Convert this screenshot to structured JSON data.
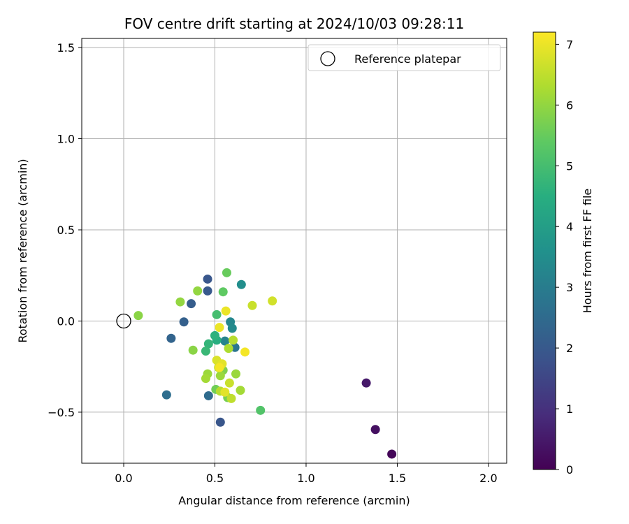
{
  "chart_data": {
    "type": "scatter",
    "title": "FOV centre drift starting at 2024/10/03 09:28:11",
    "xlabel": "Angular distance from reference (arcmin)",
    "ylabel": "Rotation from reference (arcmin)",
    "xlim": [
      -0.23,
      2.1
    ],
    "ylim": [
      -0.78,
      1.55
    ],
    "x_ticks": [
      0.0,
      0.5,
      1.0,
      1.5,
      2.0
    ],
    "x_tick_labels": [
      "0.0",
      "0.5",
      "1.0",
      "1.5",
      "2.0"
    ],
    "y_ticks": [
      -0.5,
      0.0,
      0.5,
      1.0,
      1.5
    ],
    "y_tick_labels": [
      "−0.5",
      "0.0",
      "0.5",
      "1.0",
      "1.5"
    ],
    "grid": true,
    "legend": {
      "placement": "top-right",
      "entries": [
        {
          "label": "Reference platepar",
          "marker": "open-circle"
        }
      ]
    },
    "reference_point": {
      "x": 0.0,
      "y": 0.0
    },
    "colorbar": {
      "label": "Hours from first FF file",
      "colormap": "viridis",
      "range": [
        0,
        7.2
      ],
      "ticks": [
        0,
        1,
        2,
        3,
        4,
        5,
        6,
        7
      ],
      "tick_labels": [
        "0",
        "1",
        "2",
        "3",
        "4",
        "5",
        "6",
        "7"
      ]
    },
    "points": [
      {
        "x": 1.47,
        "y": -0.73,
        "hours": 0.1
      },
      {
        "x": 1.38,
        "y": -0.595,
        "hours": 0.3
      },
      {
        "x": 1.33,
        "y": -0.34,
        "hours": 0.5
      },
      {
        "x": 0.53,
        "y": -0.555,
        "hours": 1.9
      },
      {
        "x": 0.46,
        "y": 0.23,
        "hours": 1.95
      },
      {
        "x": 0.46,
        "y": 0.165,
        "hours": 2.0
      },
      {
        "x": 0.37,
        "y": 0.095,
        "hours": 2.1
      },
      {
        "x": 0.33,
        "y": -0.005,
        "hours": 2.2
      },
      {
        "x": 0.26,
        "y": -0.095,
        "hours": 2.3
      },
      {
        "x": 0.235,
        "y": -0.405,
        "hours": 2.6
      },
      {
        "x": 0.465,
        "y": -0.41,
        "hours": 2.5
      },
      {
        "x": 0.61,
        "y": -0.145,
        "hours": 2.8
      },
      {
        "x": 0.555,
        "y": -0.11,
        "hours": 3.2
      },
      {
        "x": 0.585,
        "y": -0.005,
        "hours": 3.3
      },
      {
        "x": 0.595,
        "y": -0.04,
        "hours": 3.4
      },
      {
        "x": 0.645,
        "y": 0.2,
        "hours": 3.5
      },
      {
        "x": 0.51,
        "y": -0.105,
        "hours": 4.5
      },
      {
        "x": 0.5,
        "y": -0.08,
        "hours": 4.6
      },
      {
        "x": 0.465,
        "y": -0.125,
        "hours": 4.7
      },
      {
        "x": 0.45,
        "y": -0.165,
        "hours": 4.8
      },
      {
        "x": 0.51,
        "y": 0.035,
        "hours": 5.0
      },
      {
        "x": 0.75,
        "y": -0.49,
        "hours": 5.2
      },
      {
        "x": 0.545,
        "y": 0.16,
        "hours": 5.4
      },
      {
        "x": 0.565,
        "y": 0.265,
        "hours": 5.5
      },
      {
        "x": 0.505,
        "y": -0.375,
        "hours": 5.6
      },
      {
        "x": 0.57,
        "y": -0.42,
        "hours": 5.7
      },
      {
        "x": 0.545,
        "y": -0.27,
        "hours": 5.8
      },
      {
        "x": 0.38,
        "y": -0.16,
        "hours": 5.9
      },
      {
        "x": 0.08,
        "y": 0.03,
        "hours": 5.9
      },
      {
        "x": 0.31,
        "y": 0.105,
        "hours": 6.0
      },
      {
        "x": 0.405,
        "y": 0.165,
        "hours": 6.0
      },
      {
        "x": 0.46,
        "y": -0.29,
        "hours": 6.1
      },
      {
        "x": 0.45,
        "y": -0.315,
        "hours": 6.2
      },
      {
        "x": 0.53,
        "y": -0.3,
        "hours": 6.1
      },
      {
        "x": 0.615,
        "y": -0.29,
        "hours": 6.1
      },
      {
        "x": 0.64,
        "y": -0.38,
        "hours": 6.2
      },
      {
        "x": 0.575,
        "y": -0.15,
        "hours": 6.3
      },
      {
        "x": 0.6,
        "y": -0.105,
        "hours": 6.4
      },
      {
        "x": 0.53,
        "y": -0.385,
        "hours": 6.4
      },
      {
        "x": 0.59,
        "y": -0.425,
        "hours": 6.5
      },
      {
        "x": 0.58,
        "y": -0.34,
        "hours": 6.6
      },
      {
        "x": 0.52,
        "y": -0.255,
        "hours": 6.5
      },
      {
        "x": 0.705,
        "y": 0.085,
        "hours": 6.6
      },
      {
        "x": 0.815,
        "y": 0.11,
        "hours": 6.7
      },
      {
        "x": 0.51,
        "y": -0.215,
        "hours": 6.8
      },
      {
        "x": 0.555,
        "y": -0.39,
        "hours": 6.9
      },
      {
        "x": 0.54,
        "y": -0.235,
        "hours": 6.9
      },
      {
        "x": 0.525,
        "y": -0.035,
        "hours": 7.0
      },
      {
        "x": 0.56,
        "y": 0.055,
        "hours": 7.0
      },
      {
        "x": 0.665,
        "y": -0.17,
        "hours": 7.1
      },
      {
        "x": 0.525,
        "y": -0.255,
        "hours": 7.1
      }
    ]
  }
}
